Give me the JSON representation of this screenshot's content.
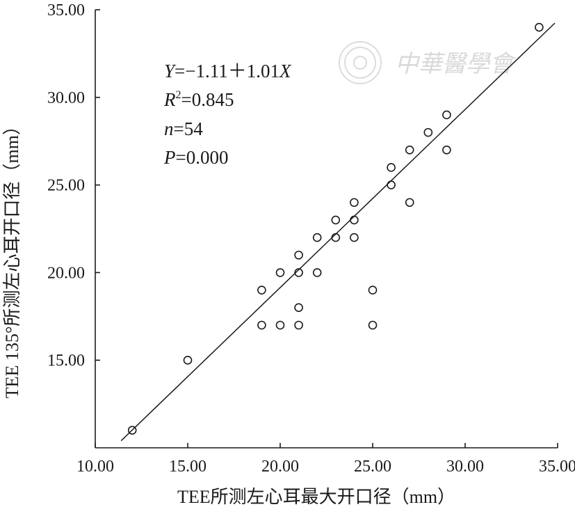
{
  "chart_data": {
    "type": "scatter",
    "title": "",
    "xlabel": "TEE所测左心耳最大开口径（mm）",
    "ylabel": "TEE 135°所测左心耳开口径（mm）",
    "xlim": [
      10,
      35
    ],
    "ylim": [
      10,
      35
    ],
    "x_ticks": [
      "10.00",
      "15.00",
      "20.00",
      "25.00",
      "30.00",
      "35.00"
    ],
    "y_ticks": [
      "15.00",
      "20.00",
      "25.00",
      "30.00",
      "35.00"
    ],
    "x_tick_values": [
      10,
      15,
      20,
      25,
      30,
      35
    ],
    "y_tick_values": [
      15,
      20,
      25,
      30,
      35
    ],
    "points": [
      {
        "x": 12,
        "y": 11
      },
      {
        "x": 15,
        "y": 15
      },
      {
        "x": 19,
        "y": 17
      },
      {
        "x": 19,
        "y": 19
      },
      {
        "x": 20,
        "y": 17
      },
      {
        "x": 20,
        "y": 20
      },
      {
        "x": 21,
        "y": 17
      },
      {
        "x": 21,
        "y": 18
      },
      {
        "x": 21,
        "y": 20
      },
      {
        "x": 21,
        "y": 21
      },
      {
        "x": 22,
        "y": 20
      },
      {
        "x": 22,
        "y": 22
      },
      {
        "x": 23,
        "y": 22
      },
      {
        "x": 23,
        "y": 23
      },
      {
        "x": 24,
        "y": 22
      },
      {
        "x": 24,
        "y": 23
      },
      {
        "x": 24,
        "y": 24
      },
      {
        "x": 25,
        "y": 17
      },
      {
        "x": 25,
        "y": 19
      },
      {
        "x": 26,
        "y": 25
      },
      {
        "x": 26,
        "y": 26
      },
      {
        "x": 27,
        "y": 24
      },
      {
        "x": 27,
        "y": 27
      },
      {
        "x": 28,
        "y": 28
      },
      {
        "x": 29,
        "y": 27
      },
      {
        "x": 29,
        "y": 29
      },
      {
        "x": 34,
        "y": 34
      }
    ],
    "fit": {
      "intercept": -1.11,
      "slope": 1.01,
      "x_range": [
        11.4,
        35
      ]
    },
    "annotations": {
      "equation": {
        "italic": "Y",
        "rest": "=−1.11＋1.01",
        "italic2": "X"
      },
      "r2": {
        "italic": "R",
        "sup": "2",
        "rest": "=0.845"
      },
      "n": {
        "italic": "n",
        "rest": "=54"
      },
      "p": {
        "italic": "P",
        "rest": "=0.000"
      }
    },
    "grid": false,
    "legend": "none"
  },
  "watermark": {
    "text": "中華醫學會",
    "color": "#d9d9d9"
  }
}
